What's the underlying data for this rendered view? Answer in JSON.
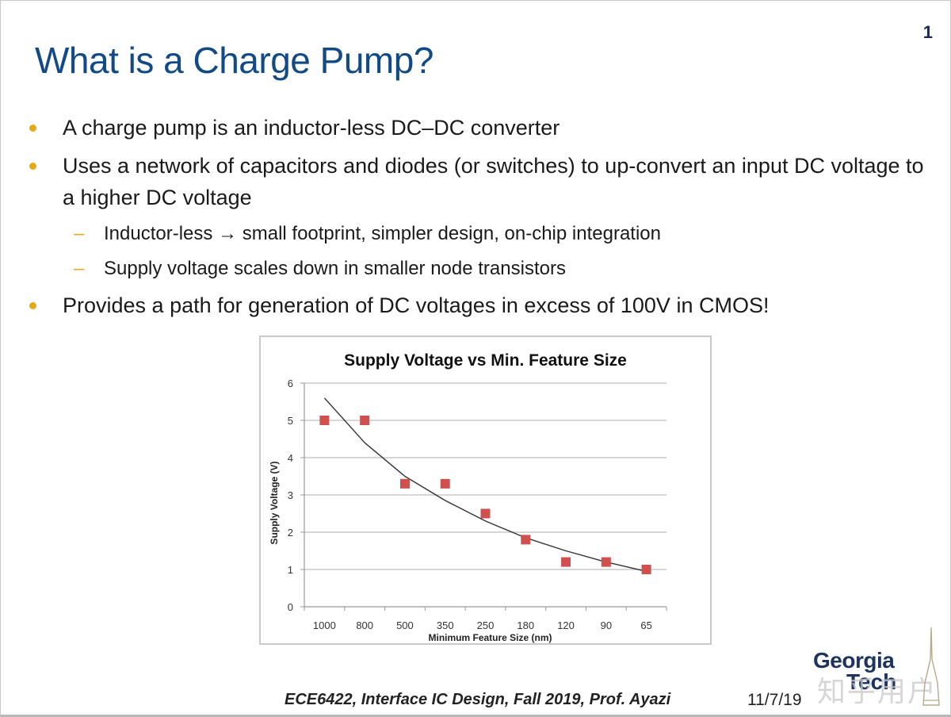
{
  "slide": {
    "page_number": "1",
    "title": "What is a Charge Pump?",
    "bullets": [
      {
        "level": 1,
        "text": "A charge pump is an inductor-less DC–DC converter"
      },
      {
        "level": 1,
        "text": "Uses a network of capacitors and diodes (or switches) to up-convert an input DC voltage to a higher DC voltage"
      },
      {
        "level": 2,
        "text": "Inductor-less → small footprint,  simpler design,  on-chip integration"
      },
      {
        "level": 2,
        "text": "Supply voltage scales down in smaller node transistors"
      },
      {
        "level": 1,
        "text": "Provides a path for generation of DC voltages in excess of 100V in CMOS!"
      }
    ],
    "footer": "ECE6422, Interface IC Design, Fall 2019, Prof.  Ayazi",
    "date": "11/7/19",
    "logo": {
      "line1": "Georgia",
      "line2": "Tech"
    },
    "watermark": "知乎用户",
    "colors": {
      "title": "#124a85",
      "bullet": "#e6a91a",
      "marker": "#d0504f",
      "grid": "#c8c8c8"
    }
  },
  "chart_data": {
    "type": "scatter",
    "title": "Supply Voltage vs Min. Feature Size",
    "xlabel": "Minimum Feature Size (nm)",
    "ylabel": "Supply Voltage (V)",
    "categories": [
      "1000",
      "800",
      "500",
      "350",
      "250",
      "180",
      "120",
      "90",
      "65"
    ],
    "series": [
      {
        "name": "Supply Voltage",
        "values": [
          5,
          5,
          3.3,
          3.3,
          2.5,
          1.8,
          1.2,
          1.2,
          1.0
        ],
        "marker": "square"
      },
      {
        "name": "Trendline (exponential)",
        "values": [
          5.6,
          4.4,
          3.5,
          2.85,
          2.3,
          1.85,
          1.5,
          1.2,
          0.95
        ],
        "style": "line"
      }
    ],
    "ylim": [
      0,
      6
    ],
    "yticks": [
      0,
      1,
      2,
      3,
      4,
      5,
      6
    ],
    "grid": true,
    "legend": "none"
  }
}
